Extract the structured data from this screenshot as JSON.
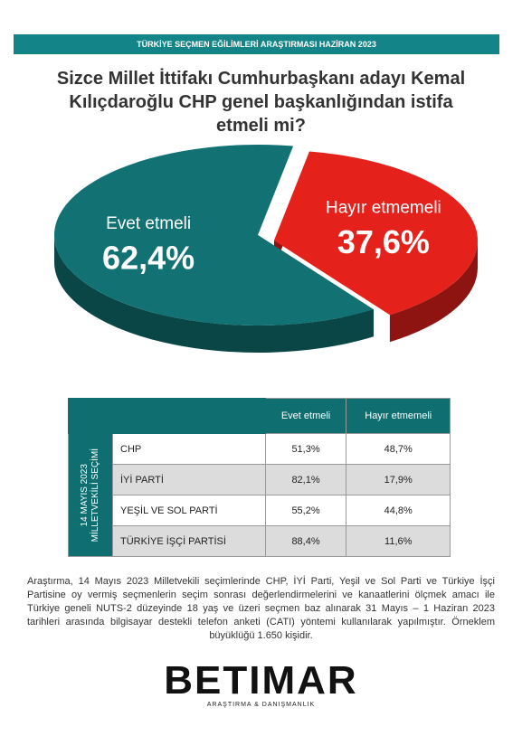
{
  "header": "TÜRKİYE SEÇMEN EĞİLİMLERİ ARAŞTIRMASI HAZİRAN 2023",
  "chart_data": {
    "type": "pie",
    "title": "Sizce Millet İttifakı Cumhurbaşkanı adayı Kemal Kılıçdaroğlu CHP genel başkanlığından istifa etmeli mi?",
    "categories": [
      "Evet etmeli",
      "Hayır etmemeli"
    ],
    "values": [
      62.4,
      37.6
    ],
    "value_labels": [
      "62,4%",
      "37,6%"
    ],
    "colors": [
      "#117173",
      "#e4211b"
    ]
  },
  "table": {
    "side_label": [
      "14 MAYIS 2023",
      "MİLLETVEKİLİ SEÇİMİ"
    ],
    "columns": [
      "Evet etmeli",
      "Hayır etmemeli"
    ],
    "rows": [
      [
        "CHP",
        "51,3%",
        "48,7%"
      ],
      [
        "İYİ PARTİ",
        "82,1%",
        "17,9%"
      ],
      [
        "YEŞİL VE SOL PARTİ",
        "55,2%",
        "44,8%"
      ],
      [
        "TÜRKİYE İŞÇİ PARTİSİ",
        "88,4%",
        "11,6%"
      ]
    ]
  },
  "footnote": "Araştırma, 14 Mayıs 2023 Milletvekili seçimlerinde CHP, İYİ Parti, Yeşil ve Sol Parti ve Türkiye İşçi Partisine oy vermiş seçmenlerin seçim sonrası değerlendirmelerini ve kanaatlerini ölçmek amacı ile Türkiye geneli NUTS-2 düzeyinde 18 yaş ve üzeri seçmen baz alınarak 31 Mayıs – 1 Haziran 2023 tarihleri arasında bilgisayar destekli telefon anketi (CATI) yöntemi kullanılarak yapılmıştır. Örneklem büyüklüğü 1.650 kişidir.",
  "logo": {
    "name": "BETIMAR",
    "tagline": "ARAŞTIRMA & DANIŞMANLIK"
  }
}
